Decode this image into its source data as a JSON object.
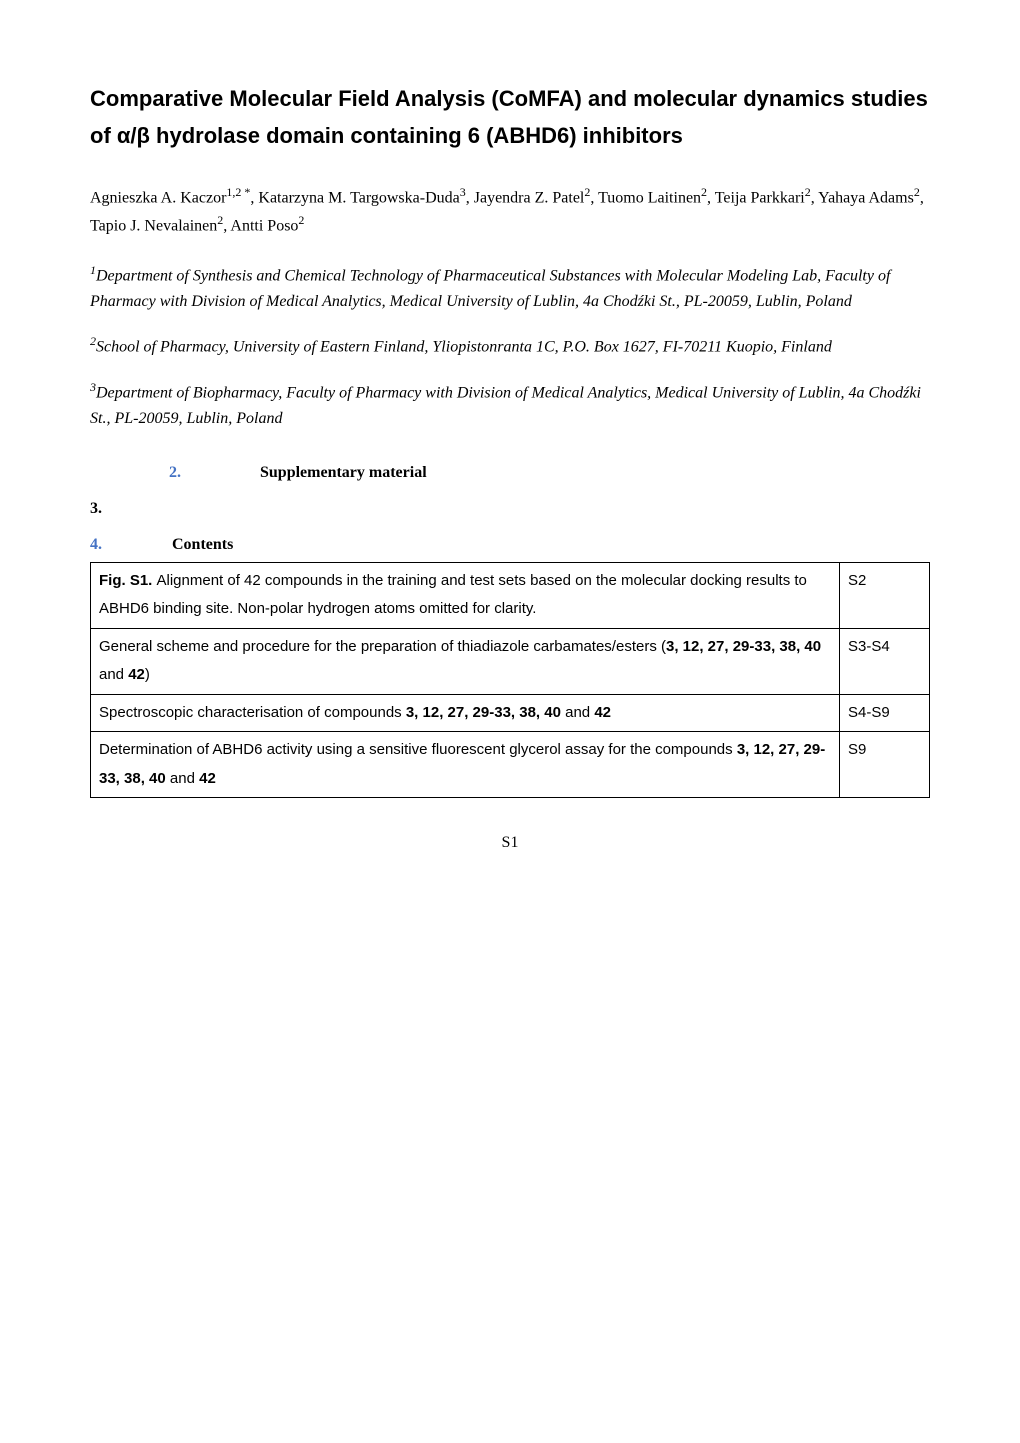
{
  "title": "Comparative Molecular Field Analysis (CoMFA) and molecular dynamics studies of α/β hydrolase domain containing 6 (ABHD6) inhibitors",
  "authors_line1": "Agnieszka A. Kaczor",
  "authors_sup1": "1,2 *",
  "authors_part2": ", Katarzyna M. Targowska-Duda",
  "authors_sup2": "3",
  "authors_part3": ", Jayendra Z. Patel",
  "authors_sup3": "2",
  "authors_part4": ", Tuomo Laitinen",
  "authors_sup4": "2",
  "authors_part5": ", Teija Parkkari",
  "authors_sup5": "2",
  "authors_part6": ", Yahaya Adams",
  "authors_sup6": "2",
  "authors_part7": ", Tapio J. Nevalainen",
  "authors_sup7": "2",
  "authors_part8": ", Antti Poso",
  "authors_sup8": "2",
  "affil1_sup": "1",
  "affil1": "Department of Synthesis and Chemical Technology of Pharmaceutical Substances with Molecular Modeling Lab, Faculty of Pharmacy with Division of Medical Analytics, Medical University of Lublin, 4a  Chodźki St., PL-20059, Lublin, Poland",
  "affil2_sup": "2",
  "affil2": "School of Pharmacy, University of Eastern Finland, Yliopistonranta 1C, P.O. Box 1627, FI-70211 Kuopio, Finland",
  "affil3_sup": "3",
  "affil3": "Department of Biopharmacy, Faculty of Pharmacy with Division of Medical Analytics, Medical University of Lublin, 4a  Chodźki St., PL-20059, Lublin, Poland",
  "section2_num": "2.",
  "section2_label": "Supplementary material",
  "section3": "3.",
  "section4_num": "4.",
  "section4_label": "Contents",
  "toc": {
    "rows": [
      {
        "desc_parts": [
          {
            "bold": true,
            "text": "Fig. S1. "
          },
          {
            "bold": false,
            "text": "Alignment of 42 compounds in the training and test sets based on the molecular docking results to ABHD6 binding site. Non-polar hydrogen atoms omitted for clarity."
          }
        ],
        "page": "S2"
      },
      {
        "desc_parts": [
          {
            "bold": false,
            "text": "General scheme and procedure for the preparation of thiadiazole carbamates/esters ("
          },
          {
            "bold": true,
            "text": "3, 12, 27, 29-33, 38, 40"
          },
          {
            "bold": false,
            "text": " and "
          },
          {
            "bold": true,
            "text": "42"
          },
          {
            "bold": false,
            "text": ")"
          }
        ],
        "page": "S3-S4"
      },
      {
        "desc_parts": [
          {
            "bold": false,
            "text": "Spectroscopic characterisation of compounds "
          },
          {
            "bold": true,
            "text": "3, 12, 27, 29-33, 38, 40"
          },
          {
            "bold": false,
            "text": " and "
          },
          {
            "bold": true,
            "text": "42"
          }
        ],
        "page": "S4-S9"
      },
      {
        "desc_parts": [
          {
            "bold": false,
            "text": "Determination of ABHD6 activity using a sensitive fluorescent\nglycerol assay for the compounds "
          },
          {
            "bold": true,
            "text": "3, 12, 27, 29-33, 38, 40"
          },
          {
            "bold": false,
            "text": " and "
          },
          {
            "bold": true,
            "text": "42"
          }
        ],
        "page": "S9"
      }
    ]
  },
  "footer": "S1",
  "colors": {
    "accent": "#4472c4",
    "text": "#000000",
    "background": "#ffffff",
    "border": "#000000"
  }
}
